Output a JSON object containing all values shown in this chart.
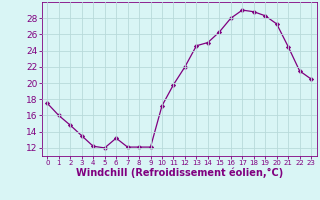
{
  "x": [
    0,
    1,
    2,
    3,
    4,
    5,
    6,
    7,
    8,
    9,
    10,
    11,
    12,
    13,
    14,
    15,
    16,
    17,
    18,
    19,
    20,
    21,
    22,
    23
  ],
  "y": [
    17.5,
    16.0,
    14.8,
    13.5,
    12.2,
    12.0,
    13.2,
    12.1,
    12.1,
    12.1,
    17.2,
    19.8,
    22.0,
    24.6,
    25.0,
    26.3,
    28.0,
    29.0,
    28.8,
    28.3,
    27.3,
    24.5,
    21.5,
    20.5
  ],
  "line_color": "#800080",
  "marker": "D",
  "marker_size": 2.2,
  "bg_color": "#d9f5f5",
  "grid_color": "#b8dada",
  "xlabel": "Windchill (Refroidissement éolien,°C)",
  "xlim": [
    -0.5,
    23.5
  ],
  "ylim": [
    11,
    30
  ],
  "yticks": [
    12,
    14,
    16,
    18,
    20,
    22,
    24,
    26,
    28
  ],
  "xtick_labels": [
    "0",
    "1",
    "2",
    "3",
    "4",
    "5",
    "6",
    "7",
    "8",
    "9",
    "10",
    "11",
    "12",
    "13",
    "14",
    "15",
    "16",
    "17",
    "18",
    "19",
    "20",
    "21",
    "22",
    "23"
  ],
  "tick_color": "#800080",
  "label_color": "#800080",
  "ytick_fontsize": 6.5,
  "xtick_fontsize": 5.0,
  "xlabel_fontsize": 7.0
}
